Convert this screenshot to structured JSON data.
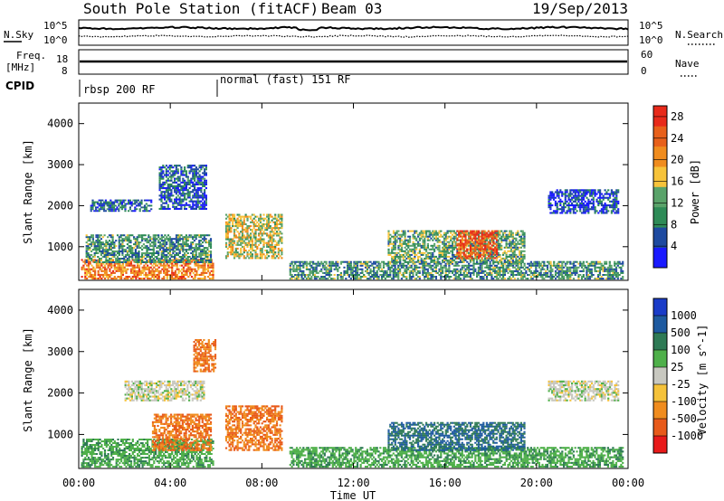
{
  "header": {
    "station": "South Pole Station (fitACF)",
    "beam": "Beam 03",
    "date": "19/Sep/2013"
  },
  "noise_panel": {
    "left_label": "N.Sky",
    "right_label": "N.Search",
    "left_ticks": [
      "10^5",
      "10^0"
    ],
    "right_ticks": [
      "10^5",
      "10^0"
    ]
  },
  "freq_panel": {
    "left_label_1": "Freq.",
    "left_label_2": "[MHz]",
    "left_ticks": [
      "18",
      "8"
    ],
    "right_label": "Nave",
    "right_ticks": [
      "60",
      "0"
    ]
  },
  "cpid": {
    "label": "CPID",
    "segments": [
      {
        "start_hour": 0,
        "label": "rbsp 200 RF"
      },
      {
        "start_hour": 6,
        "label": "normal (fast) 151 RF"
      }
    ]
  },
  "x_axis": {
    "ticks": [
      "00:00",
      "04:00",
      "08:00",
      "12:00",
      "16:00",
      "20:00",
      "00:00"
    ],
    "label": "Time UT"
  },
  "colors": {
    "power_scale": [
      "#1a1aff",
      "#1e4aa0",
      "#2e8b57",
      "#5aa36a",
      "#f7c33a",
      "#f08c1e",
      "#e8601a",
      "#e82a1a"
    ],
    "velocity_scale": [
      "#1a3cc8",
      "#1e5aa0",
      "#2e7a55",
      "#4fb04a",
      "#c8c8c0",
      "#f5c23a",
      "#f08c1e",
      "#e85a1a",
      "#e81a1a"
    ]
  },
  "chart_data": [
    {
      "type": "heatmap",
      "title": "",
      "xlabel": "Time UT",
      "ylabel": "Slant Range [km]",
      "xlim_hours": [
        0,
        24
      ],
      "ylim_km": [
        180,
        4500
      ],
      "y_ticks": [
        "1000",
        "2000",
        "3000",
        "4000"
      ],
      "colorbar": {
        "label": "Power [dB]",
        "range": [
          0,
          30
        ],
        "ticks": [
          "4",
          "8",
          "12",
          "16",
          "20",
          "24",
          "28"
        ]
      },
      "echo_regions": [
        {
          "t0": 0.1,
          "t1": 5.9,
          "r0": 200,
          "r1": 700,
          "level": 22
        },
        {
          "t0": 0.3,
          "t1": 5.8,
          "r0": 600,
          "r1": 1300,
          "level": 10
        },
        {
          "t0": 0.5,
          "t1": 3.2,
          "r0": 1850,
          "r1": 2150,
          "level": 6
        },
        {
          "t0": 3.5,
          "t1": 5.6,
          "r0": 1900,
          "r1": 3000,
          "level": 6
        },
        {
          "t0": 6.4,
          "t1": 8.9,
          "r0": 700,
          "r1": 1800,
          "level": 16
        },
        {
          "t0": 9.2,
          "t1": 23.8,
          "r0": 200,
          "r1": 650,
          "level": 10
        },
        {
          "t0": 13.5,
          "t1": 19.5,
          "r0": 600,
          "r1": 1400,
          "level": 12
        },
        {
          "t0": 16.5,
          "t1": 18.3,
          "r0": 700,
          "r1": 1400,
          "level": 26
        },
        {
          "t0": 20.5,
          "t1": 23.6,
          "r0": 1800,
          "r1": 2400,
          "level": 4
        }
      ]
    },
    {
      "type": "heatmap",
      "title": "",
      "xlabel": "Time UT",
      "ylabel": "Slant Range [km]",
      "xlim_hours": [
        0,
        24
      ],
      "ylim_km": [
        180,
        4500
      ],
      "y_ticks": [
        "1000",
        "2000",
        "3000",
        "4000"
      ],
      "colorbar": {
        "label": "Velocity [m s^-1]",
        "ticks": [
          "1000",
          "500",
          "100",
          "25",
          "-25",
          "-100",
          "-500",
          "-1000"
        ]
      },
      "echo_regions": [
        {
          "t0": 0.1,
          "t1": 5.9,
          "r0": 200,
          "r1": 900,
          "level": 80
        },
        {
          "t0": 3.2,
          "t1": 5.8,
          "r0": 600,
          "r1": 1500,
          "level": -300
        },
        {
          "t0": 2.0,
          "t1": 5.5,
          "r0": 1800,
          "r1": 2300,
          "level": 0
        },
        {
          "t0": 5.0,
          "t1": 6.0,
          "r0": 2500,
          "r1": 3300,
          "level": -300
        },
        {
          "t0": 6.4,
          "t1": 8.9,
          "r0": 600,
          "r1": 1700,
          "level": -300
        },
        {
          "t0": 9.2,
          "t1": 23.8,
          "r0": 200,
          "r1": 700,
          "level": 80
        },
        {
          "t0": 13.5,
          "t1": 19.5,
          "r0": 600,
          "r1": 1300,
          "level": 300
        },
        {
          "t0": 20.5,
          "t1": 23.6,
          "r0": 1800,
          "r1": 2300,
          "level": 0
        }
      ]
    }
  ]
}
